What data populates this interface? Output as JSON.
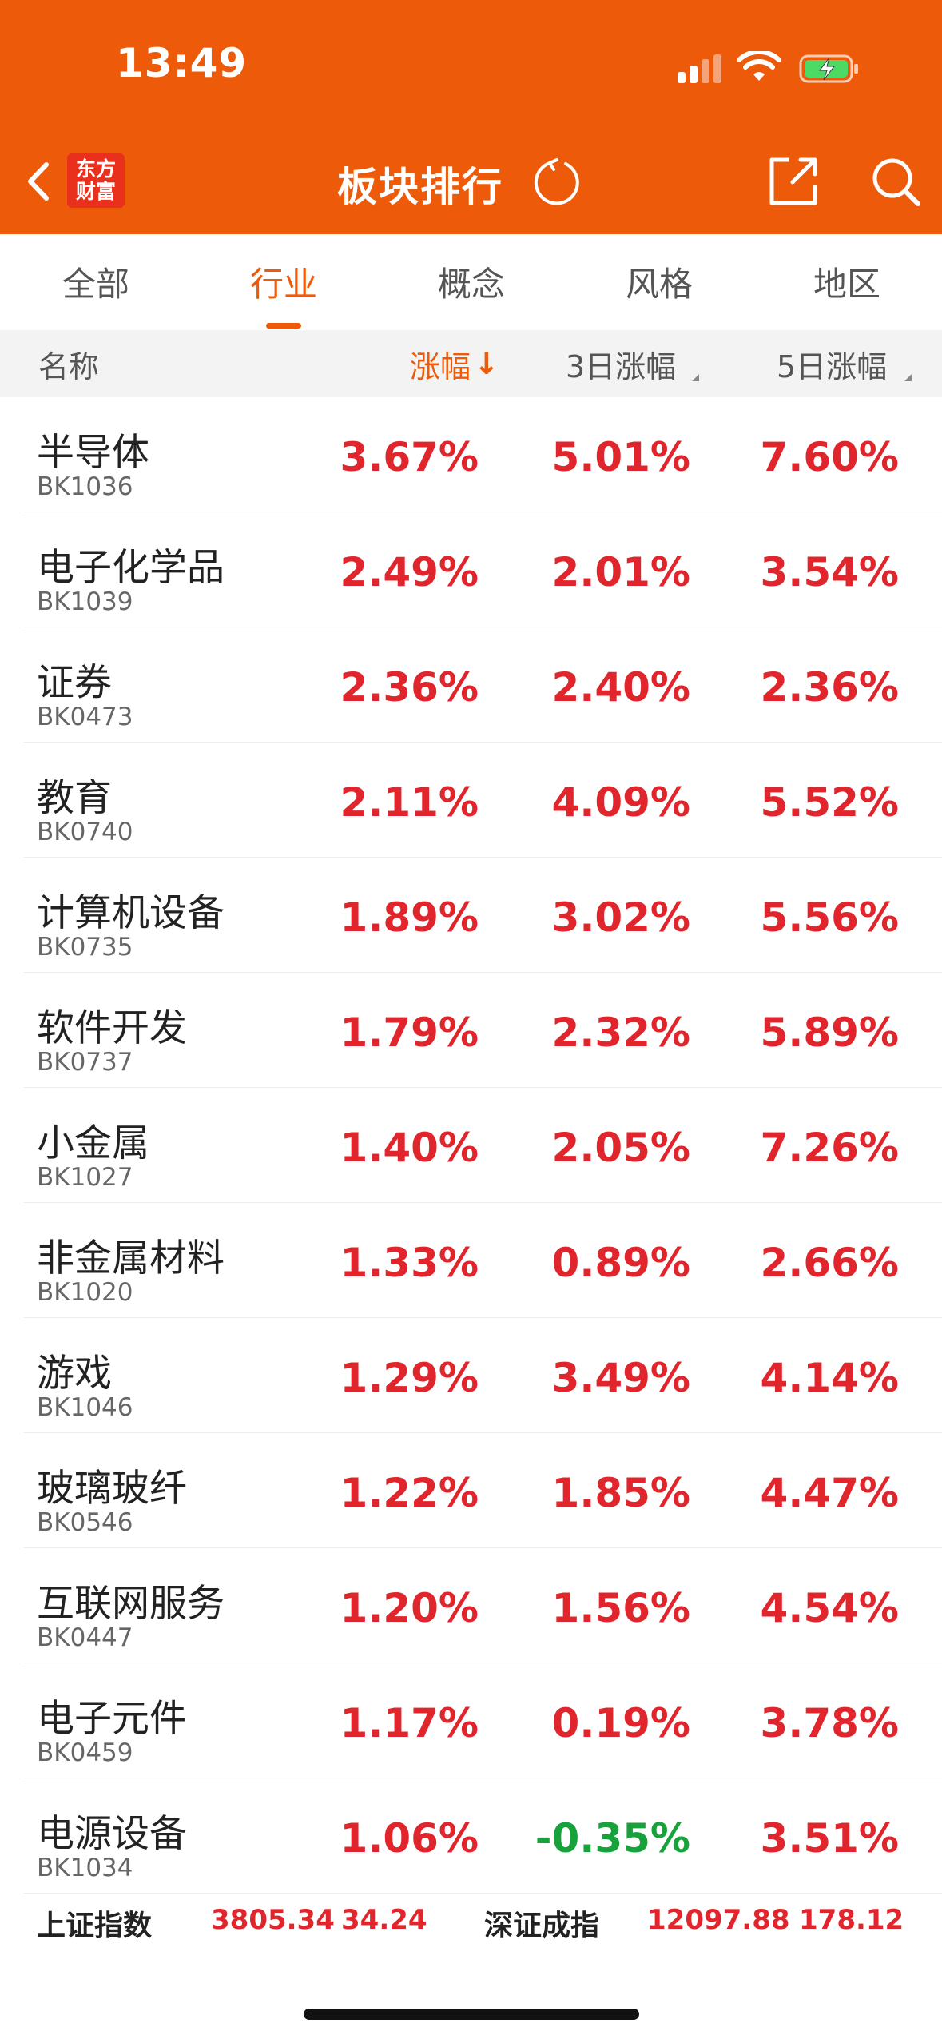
{
  "status_bar": {
    "time": "13:49"
  },
  "nav": {
    "logo_line1": "东方",
    "logo_line2": "财富",
    "title": "板块排行"
  },
  "tabs": [
    {
      "label": "全部",
      "active": false
    },
    {
      "label": "行业",
      "active": true
    },
    {
      "label": "概念",
      "active": false
    },
    {
      "label": "风格",
      "active": false
    },
    {
      "label": "地区",
      "active": false
    }
  ],
  "columns": {
    "name": "名称",
    "change": "涨幅",
    "change_sort_arrow": "↓",
    "change_3d": "3日涨幅",
    "change_5d": "5日涨幅"
  },
  "rows": [
    {
      "name": "半导体",
      "code": "BK1036",
      "change": "3.67%",
      "change_3d": "5.01%",
      "change_5d": "7.60%"
    },
    {
      "name": "电子化学品",
      "code": "BK1039",
      "change": "2.49%",
      "change_3d": "2.01%",
      "change_5d": "3.54%"
    },
    {
      "name": "证券",
      "code": "BK0473",
      "change": "2.36%",
      "change_3d": "2.40%",
      "change_5d": "2.36%"
    },
    {
      "name": "教育",
      "code": "BK0740",
      "change": "2.11%",
      "change_3d": "4.09%",
      "change_5d": "5.52%"
    },
    {
      "name": "计算机设备",
      "code": "BK0735",
      "change": "1.89%",
      "change_3d": "3.02%",
      "change_5d": "5.56%"
    },
    {
      "name": "软件开发",
      "code": "BK0737",
      "change": "1.79%",
      "change_3d": "2.32%",
      "change_5d": "5.89%"
    },
    {
      "name": "小金属",
      "code": "BK1027",
      "change": "1.40%",
      "change_3d": "2.05%",
      "change_5d": "7.26%"
    },
    {
      "name": "非金属材料",
      "code": "BK1020",
      "change": "1.33%",
      "change_3d": "0.89%",
      "change_5d": "2.66%"
    },
    {
      "name": "游戏",
      "code": "BK1046",
      "change": "1.29%",
      "change_3d": "3.49%",
      "change_5d": "4.14%"
    },
    {
      "name": "玻璃玻纤",
      "code": "BK0546",
      "change": "1.22%",
      "change_3d": "1.85%",
      "change_5d": "4.47%"
    },
    {
      "name": "互联网服务",
      "code": "BK0447",
      "change": "1.20%",
      "change_3d": "1.56%",
      "change_5d": "4.54%"
    },
    {
      "name": "电子元件",
      "code": "BK0459",
      "change": "1.17%",
      "change_3d": "0.19%",
      "change_5d": "3.78%"
    },
    {
      "name": "电源设备",
      "code": "BK1034",
      "change": "1.06%",
      "change_3d": "-0.35%",
      "change_5d": "3.51%"
    }
  ],
  "index_bar": {
    "sh_label": "上证指数",
    "sh_value": "3805.34",
    "sh_change": "34.24",
    "sz_label": "深证成指",
    "sz_value": "12097.88",
    "sz_change": "178.12"
  },
  "colors": {
    "brand": "#EC5A0A",
    "up": "#E0262C",
    "down": "#17A23B"
  },
  "icons": [
    "back-icon",
    "refresh-icon",
    "share-icon",
    "search-icon",
    "signal-icon",
    "wifi-icon",
    "battery-charging-icon"
  ]
}
